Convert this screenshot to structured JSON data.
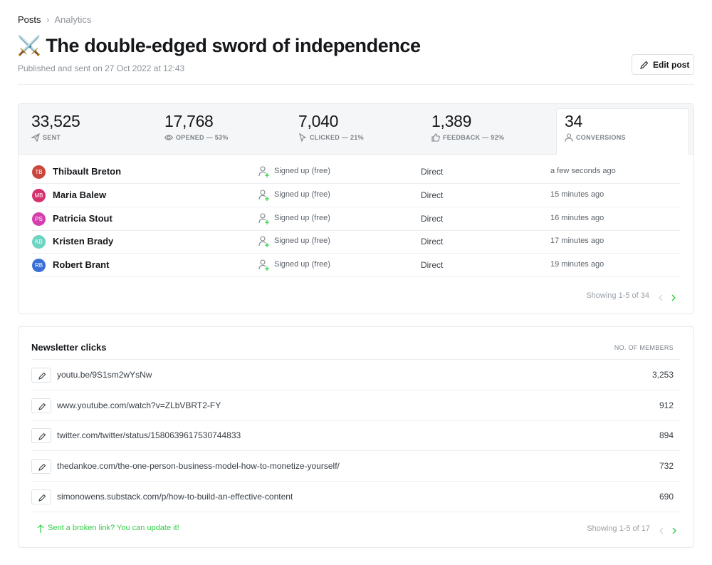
{
  "breadcrumb": {
    "parent": "Posts",
    "current": "Analytics"
  },
  "header": {
    "title": "⚔️ The double-edged sword of independence",
    "subtitle": "Published and sent on 27 Oct 2022 at 12:43",
    "edit_button": "Edit post"
  },
  "stats": [
    {
      "value": "33,525",
      "label": "SENT"
    },
    {
      "value": "17,768",
      "label": "OPENED — 53%"
    },
    {
      "value": "7,040",
      "label": "CLICKED — 21%"
    },
    {
      "value": "1,389",
      "label": "FEEDBACK — 92%"
    },
    {
      "value": "34",
      "label": "CONVERSIONS"
    }
  ],
  "members": {
    "rows": [
      {
        "initials": "TB",
        "name": "Thibault Breton",
        "action": "Signed up (free)",
        "source": "Direct",
        "time": "a few seconds ago"
      },
      {
        "initials": "MB",
        "name": "Maria Balew",
        "action": "Signed up (free)",
        "source": "Direct",
        "time": "15 minutes ago"
      },
      {
        "initials": "PS",
        "name": "Patricia Stout",
        "action": "Signed up (free)",
        "source": "Direct",
        "time": "16 minutes ago"
      },
      {
        "initials": "KB",
        "name": "Kristen Brady",
        "action": "Signed up (free)",
        "source": "Direct",
        "time": "17 minutes ago"
      },
      {
        "initials": "RB",
        "name": "Robert Brant",
        "action": "Signed up (free)",
        "source": "Direct",
        "time": "19 minutes ago"
      }
    ],
    "pagination": "Showing 1-5 of 34"
  },
  "clicks": {
    "title": "Newsletter clicks",
    "column": "NO. OF MEMBERS",
    "rows": [
      {
        "url": "youtu.be/9S1sm2wYsNw",
        "members": "3,253"
      },
      {
        "url": "www.youtube.com/watch?v=ZLbVBRT2-FY",
        "members": "912"
      },
      {
        "url": "twitter.com/twitter/status/1580639617530744833",
        "members": "894"
      },
      {
        "url": "thedankoe.com/the-one-person-business-model-how-to-monetize-yourself/",
        "members": "732"
      },
      {
        "url": "simonowens.substack.com/p/how-to-build-an-effective-content",
        "members": "690"
      }
    ],
    "footer_link": "Sent a broken link? You can update it!",
    "pagination": "Showing 1-5 of 17"
  }
}
